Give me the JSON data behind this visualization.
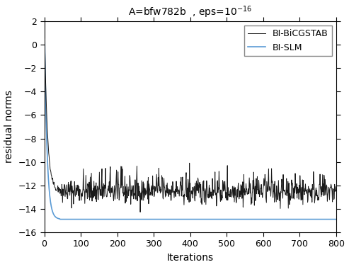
{
  "title": "A=bfw782b  , eps=10$^{-16}$",
  "xlabel": "Iterations",
  "ylabel": "residual norms",
  "xlim": [
    0,
    800
  ],
  "ylim": [
    -16,
    2
  ],
  "yticks": [
    2,
    0,
    -2,
    -4,
    -6,
    -8,
    -10,
    -12,
    -14,
    -16
  ],
  "xticks": [
    0,
    100,
    200,
    300,
    400,
    500,
    600,
    700,
    800
  ],
  "bicgstab_color": "#1a1a1a",
  "slm_color": "#5b9bd5",
  "slm_final_level": -14.9,
  "slm_converge_iter": 42,
  "bicg_steady": -12.5,
  "bicg_converge_iter": 45,
  "n_iterations": 800,
  "seed": 42,
  "legend_labels": [
    "BI-BiCGSTAB",
    "BI-SLM"
  ],
  "legend_loc": "upper right",
  "figsize": [
    4.93,
    3.77
  ],
  "dpi": 100
}
